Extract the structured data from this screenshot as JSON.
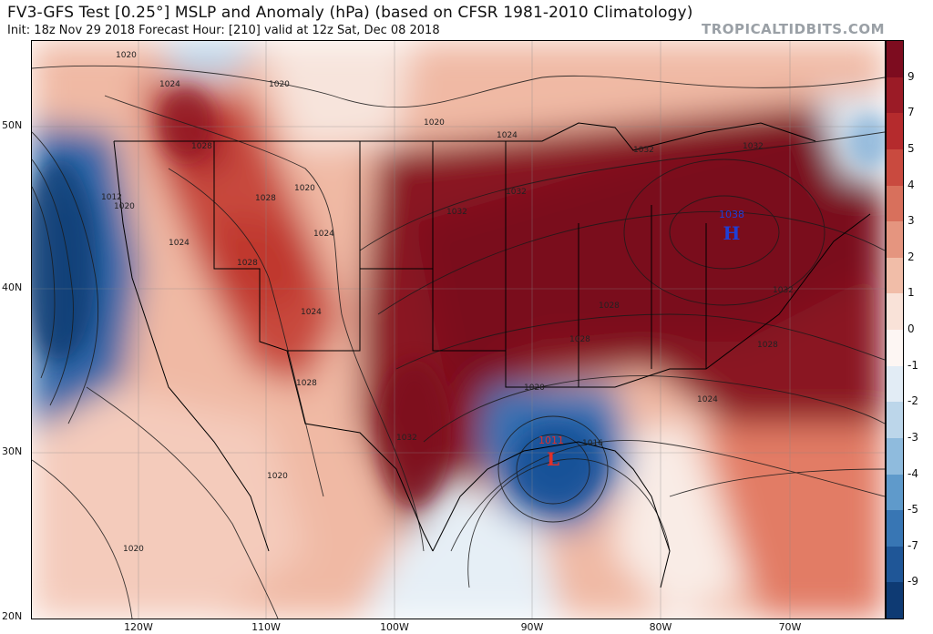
{
  "header": {
    "title": "FV3-GFS Test [0.25°] MSLP and Anomaly (hPa) (based on CFSR 1981-2010 Climatology)",
    "subtitle": "Init: 18z Nov 29 2018   Forecast Hour: [210]   valid at 12z Sat, Dec 08 2018",
    "brand": "TROPICALTIDBITS.COM"
  },
  "axes": {
    "lat_labels": [
      "50N",
      "40N",
      "30N",
      "20N"
    ],
    "lon_labels": [
      "120W",
      "110W",
      "100W",
      "90W",
      "80W",
      "70W"
    ]
  },
  "colorbar": {
    "labels": [
      "9",
      "7",
      "5",
      "4",
      "3",
      "2",
      "1",
      "0",
      "-1",
      "-2",
      "-3",
      "-4",
      "-5",
      "-7",
      "-9"
    ],
    "colors": [
      "#7d0c1f",
      "#9b1b26",
      "#b52b2d",
      "#c94a3f",
      "#d8705c",
      "#e5957f",
      "#f1bda8",
      "#f9e2d8",
      "#fdf6f3",
      "#e2ecf5",
      "#bcd6ea",
      "#8fbbdd",
      "#5f9acb",
      "#3876b4",
      "#1f5697",
      "#0e3a73"
    ]
  },
  "map": {
    "high": {
      "label": "H",
      "value": "1038"
    },
    "low": {
      "label": "L",
      "value": "1011"
    },
    "isobar_labels": [
      "1020",
      "1024",
      "1028",
      "1020",
      "1020",
      "1024",
      "1028",
      "1032",
      "1024",
      "1024",
      "1028",
      "1032",
      "1028",
      "1032",
      "1028",
      "1032",
      "1020",
      "1016",
      "1024",
      "1028",
      "1020",
      "1020",
      "1020",
      "1032",
      "1032",
      "1012",
      "1020",
      "1024",
      "1028"
    ]
  }
}
